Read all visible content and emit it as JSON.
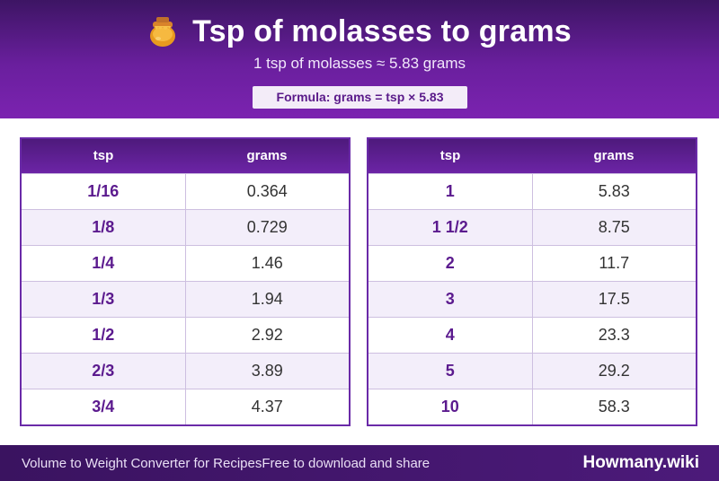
{
  "header": {
    "title": "Tsp of molasses to grams",
    "subtitle": "1 tsp of molasses ≈ 5.83 grams",
    "formula": "Formula: grams = tsp × 5.83",
    "icon": "honey-pot-icon"
  },
  "tables": {
    "left": {
      "col1": "tsp",
      "col2": "grams",
      "rows": [
        {
          "tsp": "1/16",
          "grams": "0.364"
        },
        {
          "tsp": "1/8",
          "grams": "0.729"
        },
        {
          "tsp": "1/4",
          "grams": "1.46"
        },
        {
          "tsp": "1/3",
          "grams": "1.94"
        },
        {
          "tsp": "1/2",
          "grams": "2.92"
        },
        {
          "tsp": "2/3",
          "grams": "3.89"
        },
        {
          "tsp": "3/4",
          "grams": "4.37"
        }
      ]
    },
    "right": {
      "col1": "tsp",
      "col2": "grams",
      "rows": [
        {
          "tsp": "1",
          "grams": "5.83"
        },
        {
          "tsp": "1 1/2",
          "grams": "8.75"
        },
        {
          "tsp": "2",
          "grams": "11.7"
        },
        {
          "tsp": "3",
          "grams": "17.5"
        },
        {
          "tsp": "4",
          "grams": "23.3"
        },
        {
          "tsp": "5",
          "grams": "29.2"
        },
        {
          "tsp": "10",
          "grams": "58.3"
        }
      ]
    }
  },
  "footer": {
    "left_text": "Volume to Weight Converter for Recipes",
    "tagline": "Free to download and share",
    "brand": "Howmany.wiki"
  },
  "colors": {
    "accent": "#6a1f9e",
    "dark": "#3d1564",
    "row_alt": "#f3eefa"
  }
}
